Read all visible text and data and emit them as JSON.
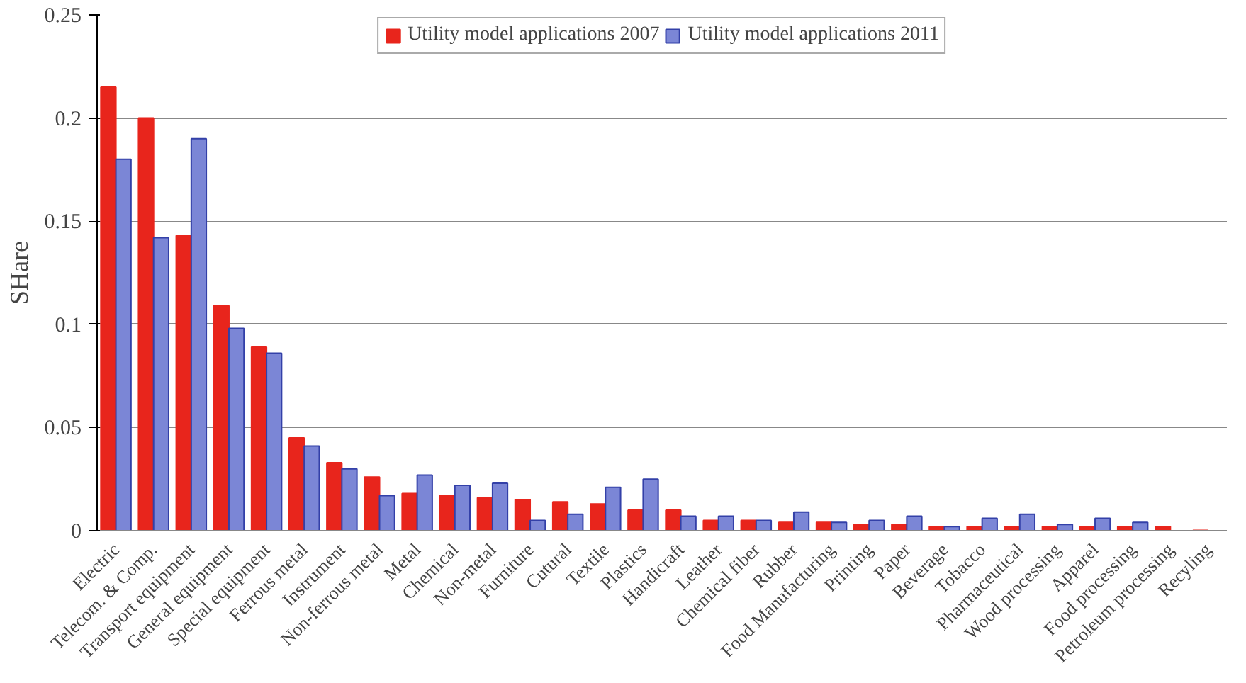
{
  "chart_data": {
    "type": "bar",
    "ylabel": "SHare",
    "categories": [
      "Electric",
      "Telecom. & Comp.",
      "Transport equipment",
      "General equipment",
      "Special equipment",
      "Ferrous metal",
      "Instrument",
      "Non-ferrous metal",
      "Metal",
      "Chemical",
      "Non-metal",
      "Furniture",
      "Cutural",
      "Textile",
      "Plastics",
      "Handicraft",
      "Leather",
      "Chemical fiber",
      "Rubber",
      "Food Manufacturing",
      "Printing",
      "Paper",
      "Beverage",
      "Tobacco",
      "Pharmaceutical",
      "Wood processing",
      "Apparel",
      "Food processing",
      "Petroleum processing",
      "Recyling"
    ],
    "series": [
      {
        "name": "Utility model applications 2007",
        "color": "#e8251c",
        "values": [
          0.215,
          0.2,
          0.143,
          0.109,
          0.089,
          0.045,
          0.033,
          0.026,
          0.018,
          0.017,
          0.016,
          0.015,
          0.014,
          0.013,
          0.01,
          0.01,
          0.005,
          0.005,
          0.004,
          0.004,
          0.003,
          0.003,
          0.002,
          0.002,
          0.002,
          0.002,
          0.002,
          0.002,
          0.002,
          0.0002
        ]
      },
      {
        "name": "Utility model applications 2011",
        "color": "#7b86d6",
        "values": [
          0.18,
          0.142,
          0.19,
          0.098,
          0.086,
          0.041,
          0.03,
          0.017,
          0.027,
          0.022,
          0.023,
          0.005,
          0.008,
          0.021,
          0.025,
          0.007,
          0.007,
          0.005,
          0.009,
          0.004,
          0.005,
          0.007,
          0.002,
          0.006,
          0.008,
          0.003,
          0.006,
          0.004,
          null,
          null
        ]
      }
    ],
    "ylim": [
      0,
      0.25
    ],
    "yticks": [
      0,
      0.05,
      0.1,
      0.15,
      0.2,
      0.25
    ],
    "grid": "y",
    "legend": "top"
  }
}
